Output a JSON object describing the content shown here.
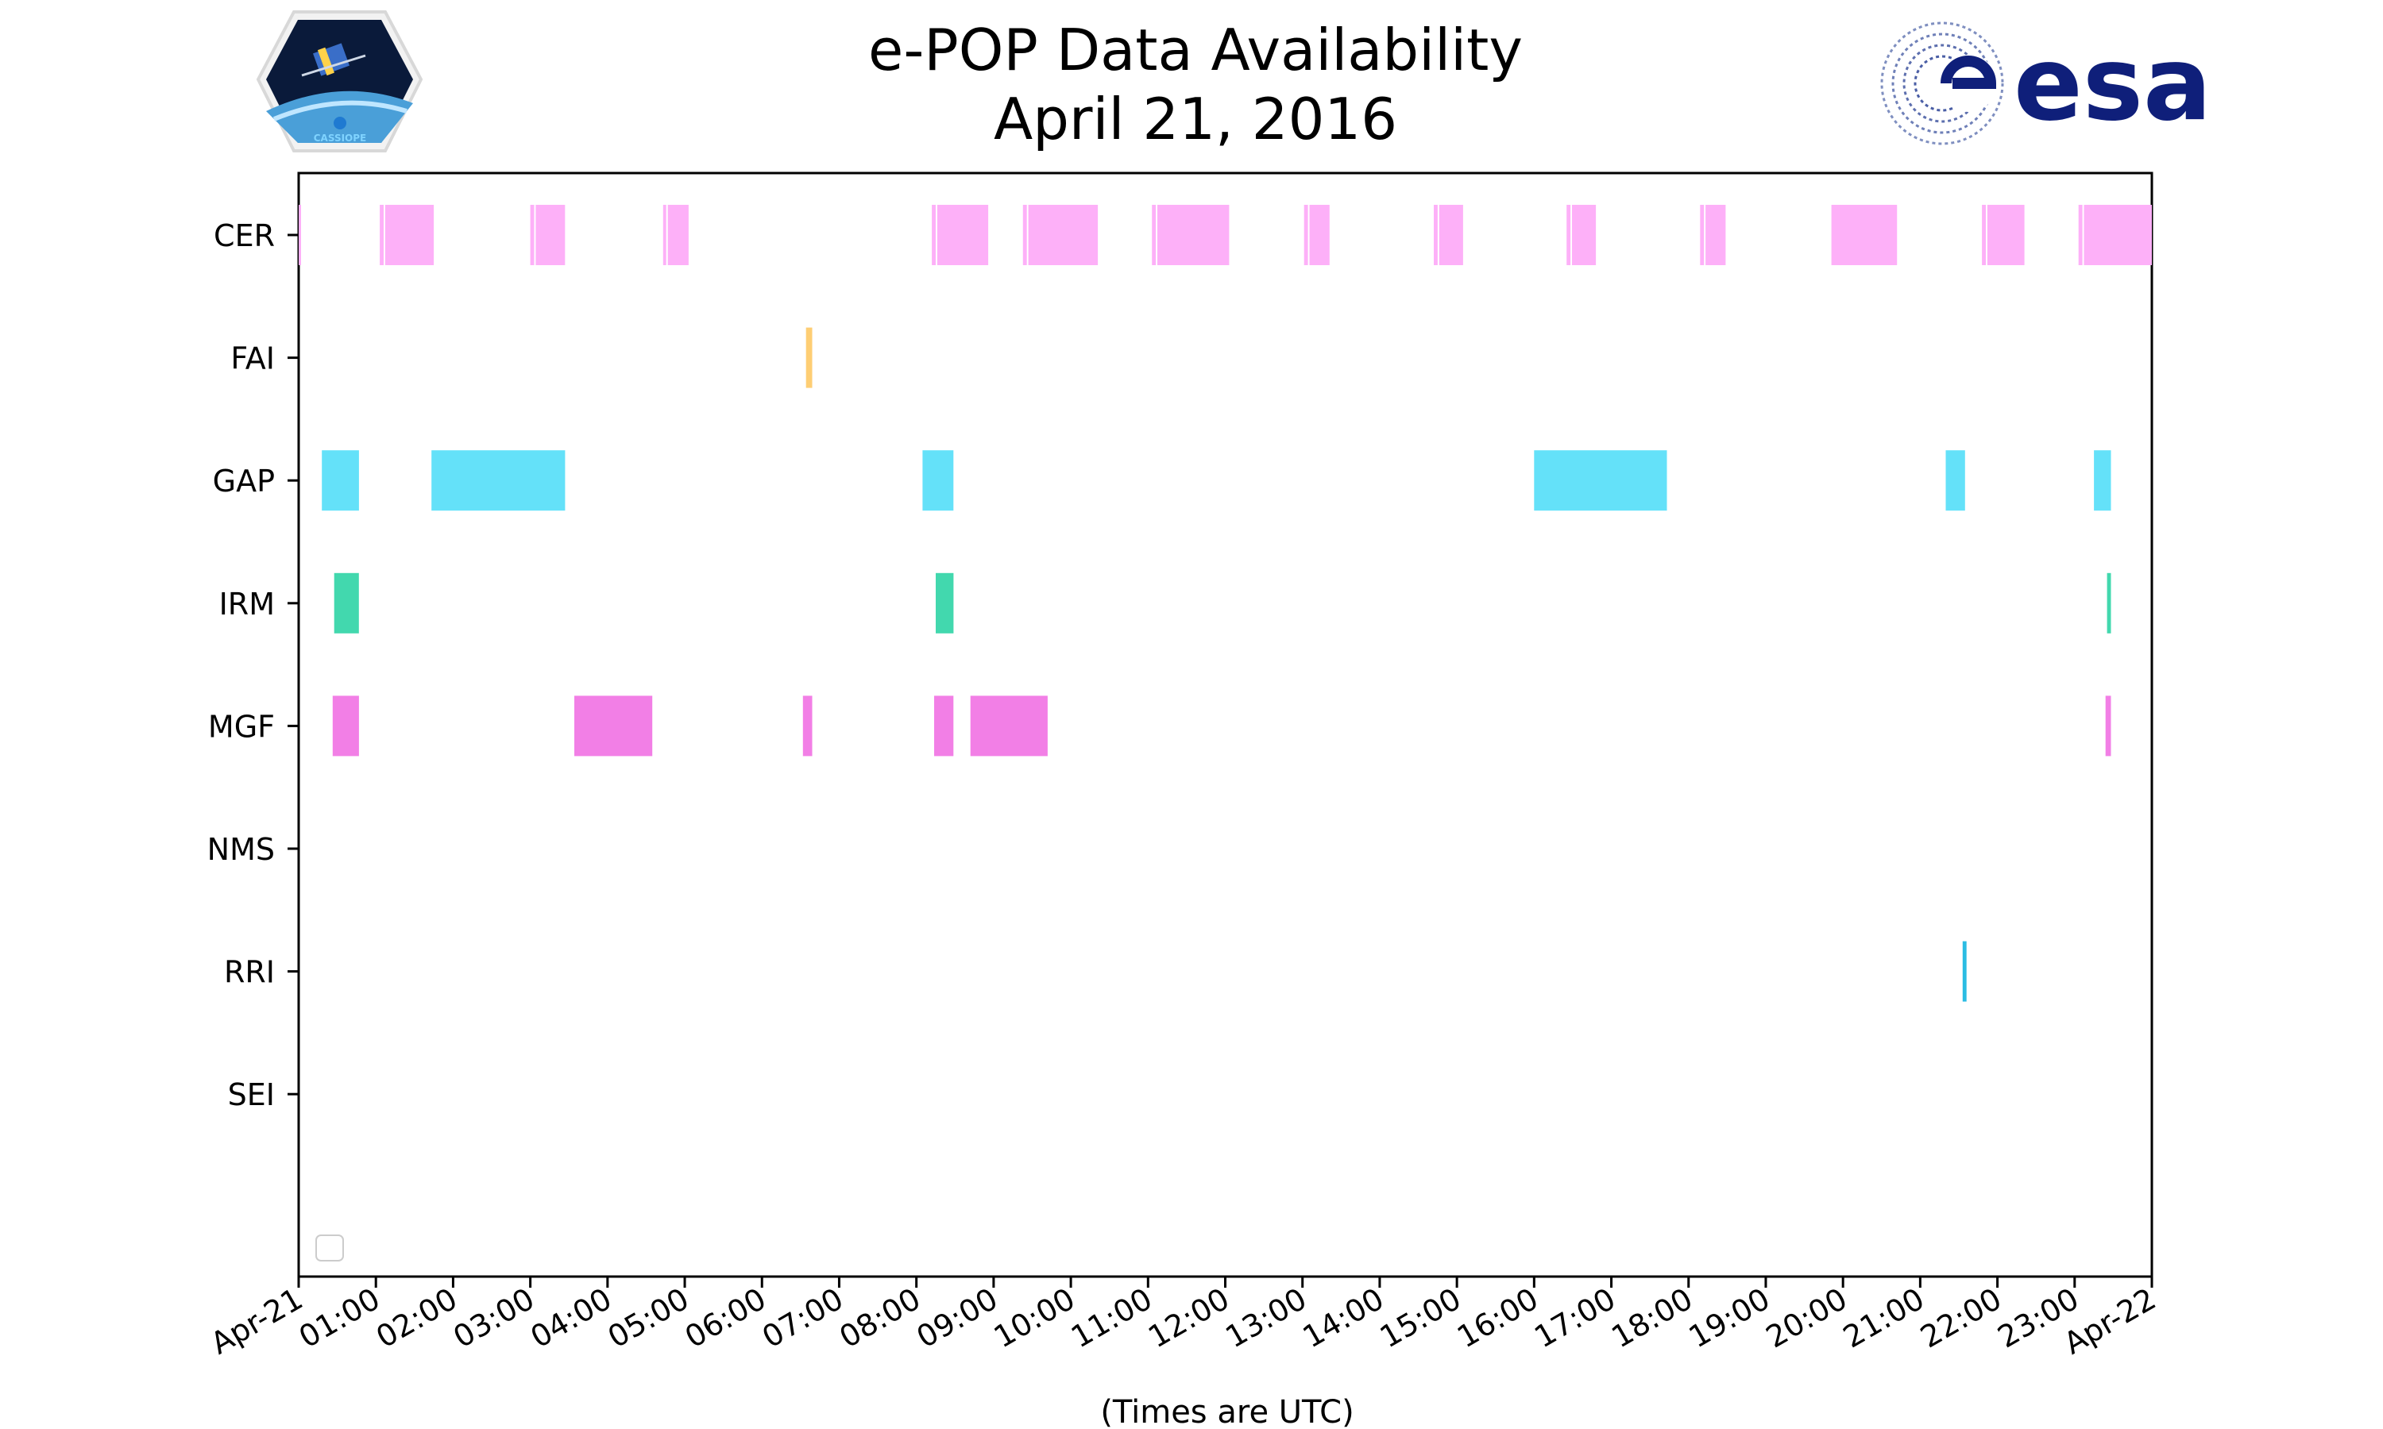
{
  "logos": {
    "left_text": "CASSIOPE",
    "right_text": "esa",
    "left_icon": "cassiope-satellite-badge-icon",
    "right_icon": "esa-logo-icon"
  },
  "chart_data": {
    "type": "timeline",
    "title": "e-POP Data Availability",
    "subtitle": "April 21, 2016",
    "xlabel": "(Times are UTC)",
    "ylabel": "",
    "x_range_hours": [
      0,
      24
    ],
    "x_tick_labels": [
      "Apr-21",
      "01:00",
      "02:00",
      "03:00",
      "04:00",
      "05:00",
      "06:00",
      "07:00",
      "08:00",
      "09:00",
      "10:00",
      "11:00",
      "12:00",
      "13:00",
      "14:00",
      "15:00",
      "16:00",
      "17:00",
      "18:00",
      "19:00",
      "20:00",
      "21:00",
      "22:00",
      "23:00",
      "Apr-22"
    ],
    "grid": false,
    "legend": "empty box, lower-left",
    "rows": [
      {
        "name": "CER",
        "color": "#fdb0f8",
        "segments": [
          [
            0.0,
            0.02
          ],
          [
            1.05,
            1.1
          ],
          [
            1.12,
            1.75
          ],
          [
            3.0,
            3.05
          ],
          [
            3.07,
            3.45
          ],
          [
            4.72,
            4.76
          ],
          [
            4.78,
            5.05
          ],
          [
            8.2,
            8.25
          ],
          [
            8.27,
            8.93
          ],
          [
            9.38,
            9.43
          ],
          [
            9.45,
            10.35
          ],
          [
            11.05,
            11.1
          ],
          [
            11.12,
            12.05
          ],
          [
            13.02,
            13.07
          ],
          [
            13.09,
            13.35
          ],
          [
            14.7,
            14.75
          ],
          [
            14.77,
            15.08
          ],
          [
            16.42,
            16.47
          ],
          [
            16.49,
            16.8
          ],
          [
            18.15,
            18.2
          ],
          [
            18.22,
            18.48
          ],
          [
            19.85,
            20.7
          ],
          [
            21.8,
            21.85
          ],
          [
            21.87,
            22.35
          ],
          [
            23.05,
            23.1
          ],
          [
            23.12,
            24.0
          ]
        ]
      },
      {
        "name": "FAI",
        "color": "#fece74",
        "segments": [
          [
            6.57,
            6.65
          ]
        ]
      },
      {
        "name": "GAP",
        "color": "#64e1f9",
        "segments": [
          [
            0.3,
            0.78
          ],
          [
            1.72,
            3.45
          ],
          [
            8.08,
            8.48
          ],
          [
            16.0,
            17.72
          ],
          [
            21.33,
            21.58
          ],
          [
            23.25,
            23.47
          ]
        ]
      },
      {
        "name": "IRM",
        "color": "#42d8ae",
        "segments": [
          [
            0.46,
            0.78
          ],
          [
            8.25,
            8.48
          ],
          [
            23.42,
            23.47
          ]
        ]
      },
      {
        "name": "MGF",
        "color": "#f27fe6",
        "segments": [
          [
            0.44,
            0.78
          ],
          [
            3.57,
            4.58
          ],
          [
            6.53,
            6.65
          ],
          [
            8.23,
            8.48
          ],
          [
            8.7,
            9.7
          ],
          [
            23.4,
            23.47
          ]
        ]
      },
      {
        "name": "NMS",
        "color": "#888888",
        "segments": []
      },
      {
        "name": "RRI",
        "color": "#2bbce3",
        "segments": [
          [
            21.55,
            21.6
          ]
        ]
      },
      {
        "name": "SEI",
        "color": "#888888",
        "segments": []
      }
    ]
  }
}
